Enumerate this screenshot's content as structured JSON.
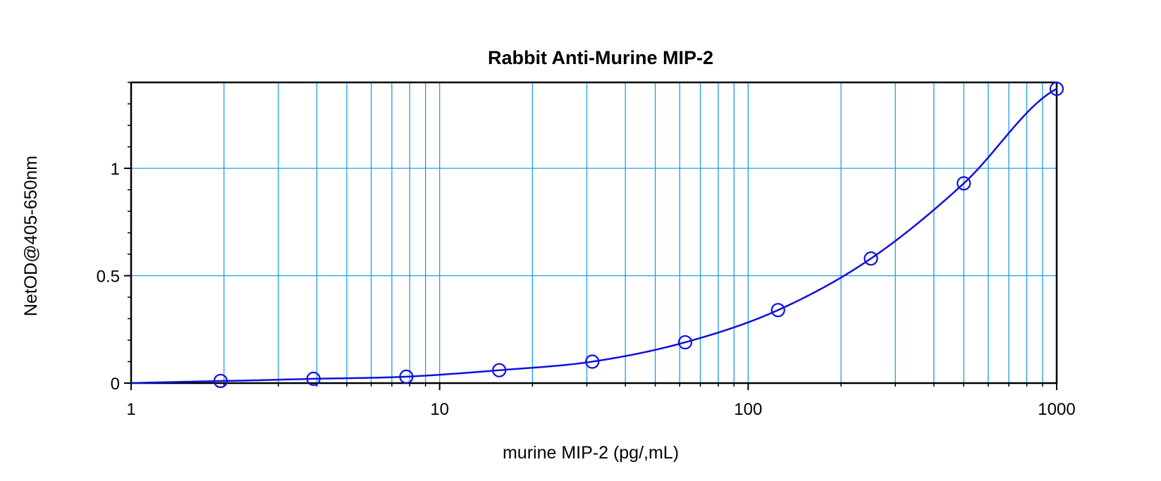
{
  "chart_data": {
    "type": "scatter",
    "title": "Rabbit Anti-Murine MIP-2",
    "xlabel": "murine MIP-2 (pg/,mL)",
    "ylabel": "NetOD@405-650nm",
    "x_scale": "log",
    "y_scale": "linear",
    "xlim": [
      1,
      1000
    ],
    "ylim": [
      0,
      1.4
    ],
    "x_ticks": [
      1,
      10,
      100,
      1000
    ],
    "x_tick_labels": [
      "1",
      "10",
      "100",
      "1000"
    ],
    "y_ticks": [
      0,
      0.5,
      1
    ],
    "y_tick_labels": [
      "0",
      "0.5",
      "1"
    ],
    "grid": true,
    "legend": "none",
    "series": [
      {
        "marker": "open-circle",
        "line": "fitted-curve",
        "x": [
          1.95,
          3.9,
          7.8,
          15.6,
          31.25,
          62.5,
          125,
          250,
          500,
          1000
        ],
        "y": [
          0.01,
          0.02,
          0.03,
          0.06,
          0.1,
          0.19,
          0.34,
          0.58,
          0.93,
          1.37
        ]
      }
    ]
  },
  "colors": {
    "series": "#1010dd",
    "grid": "#1e9de2",
    "axis": "#000000",
    "background": "#ffffff"
  }
}
